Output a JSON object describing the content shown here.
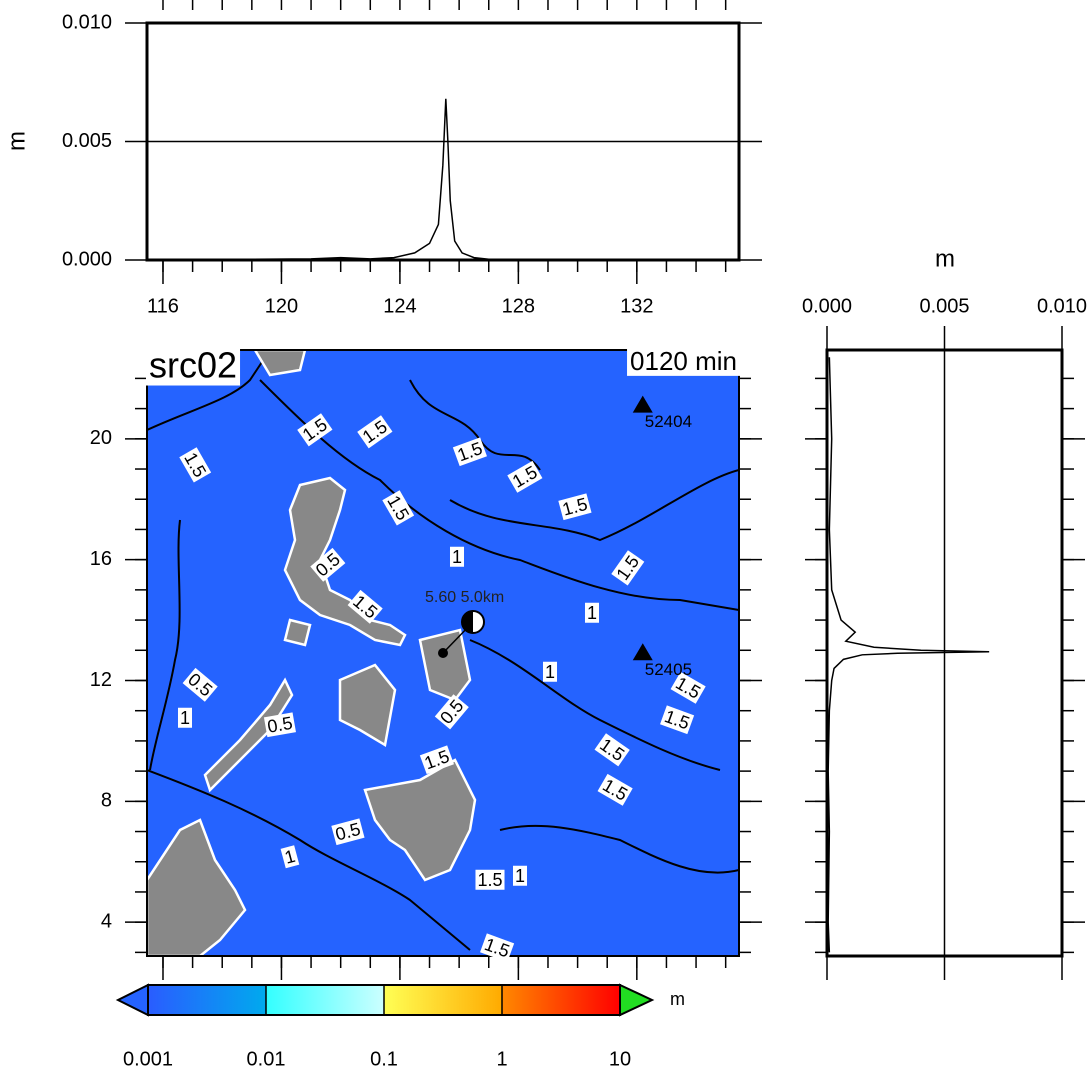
{
  "chart_data": [
    {
      "type": "line",
      "ylabel": "m",
      "x": [
        115.8,
        121,
        122,
        123,
        123.8,
        124.5,
        125,
        125.3,
        125.45,
        125.55,
        125.62,
        125.7,
        125.85,
        126.1,
        126.5,
        127,
        128,
        134.5,
        135.2
      ],
      "values": [
        0,
        5e-05,
        0.0001,
        5e-05,
        0.0001,
        0.0003,
        0.0007,
        0.0015,
        0.004,
        0.0068,
        0.005,
        0.0025,
        0.0008,
        0.0003,
        0.0001,
        3e-05,
        0,
        3e-05,
        0
      ],
      "color": "#000000",
      "xlim": [
        115.46,
        135.45
      ],
      "xticks": [
        116,
        120,
        124,
        128,
        132
      ],
      "ylim": [
        0,
        0.01
      ],
      "yticks": [
        {
          "value": 0,
          "label": "0.000"
        },
        {
          "value": 0.005,
          "label": "0.005"
        },
        {
          "value": 0.01,
          "label": "0.010"
        }
      ],
      "grid": true
    },
    {
      "type": "map",
      "title": "src02",
      "subtitle": "0120 min",
      "event_label": "5.60  5.0km",
      "xlim": [
        115.46,
        135.45
      ],
      "ylim": [
        2.88,
        22.94
      ],
      "yticks": [
        4,
        8,
        12,
        16,
        20
      ],
      "water_color": "#2563ff",
      "land_color": "#888888",
      "stations": [
        {
          "name": "52404",
          "lon": 132.2,
          "lat": 21.1
        },
        {
          "name": "52405",
          "lon": 132.2,
          "lat": 12.9
        }
      ],
      "contour_labels": [
        "1.5",
        "1.5",
        "1.5",
        "1.5",
        "1.5",
        "1.5",
        "1.5",
        "1",
        "0.5",
        "1.5",
        "1.5",
        "1",
        "1",
        "0.5",
        "1.5",
        "1",
        "0.5",
        "1.5",
        "0.5",
        "1.5",
        "1.5",
        "1.5",
        "1",
        "0.5",
        "1.5",
        "1",
        "1.5"
      ]
    },
    {
      "type": "profile",
      "xlabel": "m",
      "y": [
        22.7,
        20,
        17,
        15,
        14.5,
        14,
        13.6,
        13.3,
        13.1,
        13.0,
        12.95,
        12.9,
        12.85,
        12.7,
        12.4,
        12,
        11,
        9,
        7,
        4,
        3
      ],
      "values": [
        0.0001,
        0.0002,
        0.0001,
        0.0002,
        0.0004,
        0.0006,
        0.0012,
        0.0008,
        0.002,
        0.004,
        0.0069,
        0.003,
        0.0015,
        0.0007,
        0.0003,
        0.0002,
        0.0001,
        5e-05,
        0.0001,
        5e-05,
        0.0001
      ],
      "color": "#000000",
      "xlim": [
        0,
        0.01
      ],
      "xticks": [
        {
          "value": 0,
          "label": "0.000"
        },
        {
          "value": 0.005,
          "label": "0.005"
        },
        {
          "value": 0.01,
          "label": "0.010"
        }
      ],
      "ylim": [
        2.88,
        22.94
      ],
      "grid": true
    },
    {
      "type": "colorbar",
      "scale": "log",
      "unit": "m",
      "ticks": [
        0.001,
        0.01,
        0.1,
        1,
        10
      ],
      "colors": [
        [
          "#2a5cff",
          "#00aaee"
        ],
        [
          "#33ffff",
          "#ccffff"
        ],
        [
          "#ffff55",
          "#ffaa00"
        ],
        [
          "#ff8800",
          "#ff0000"
        ]
      ],
      "under_color": "#2563ff",
      "over_color": "#22dd22"
    }
  ]
}
